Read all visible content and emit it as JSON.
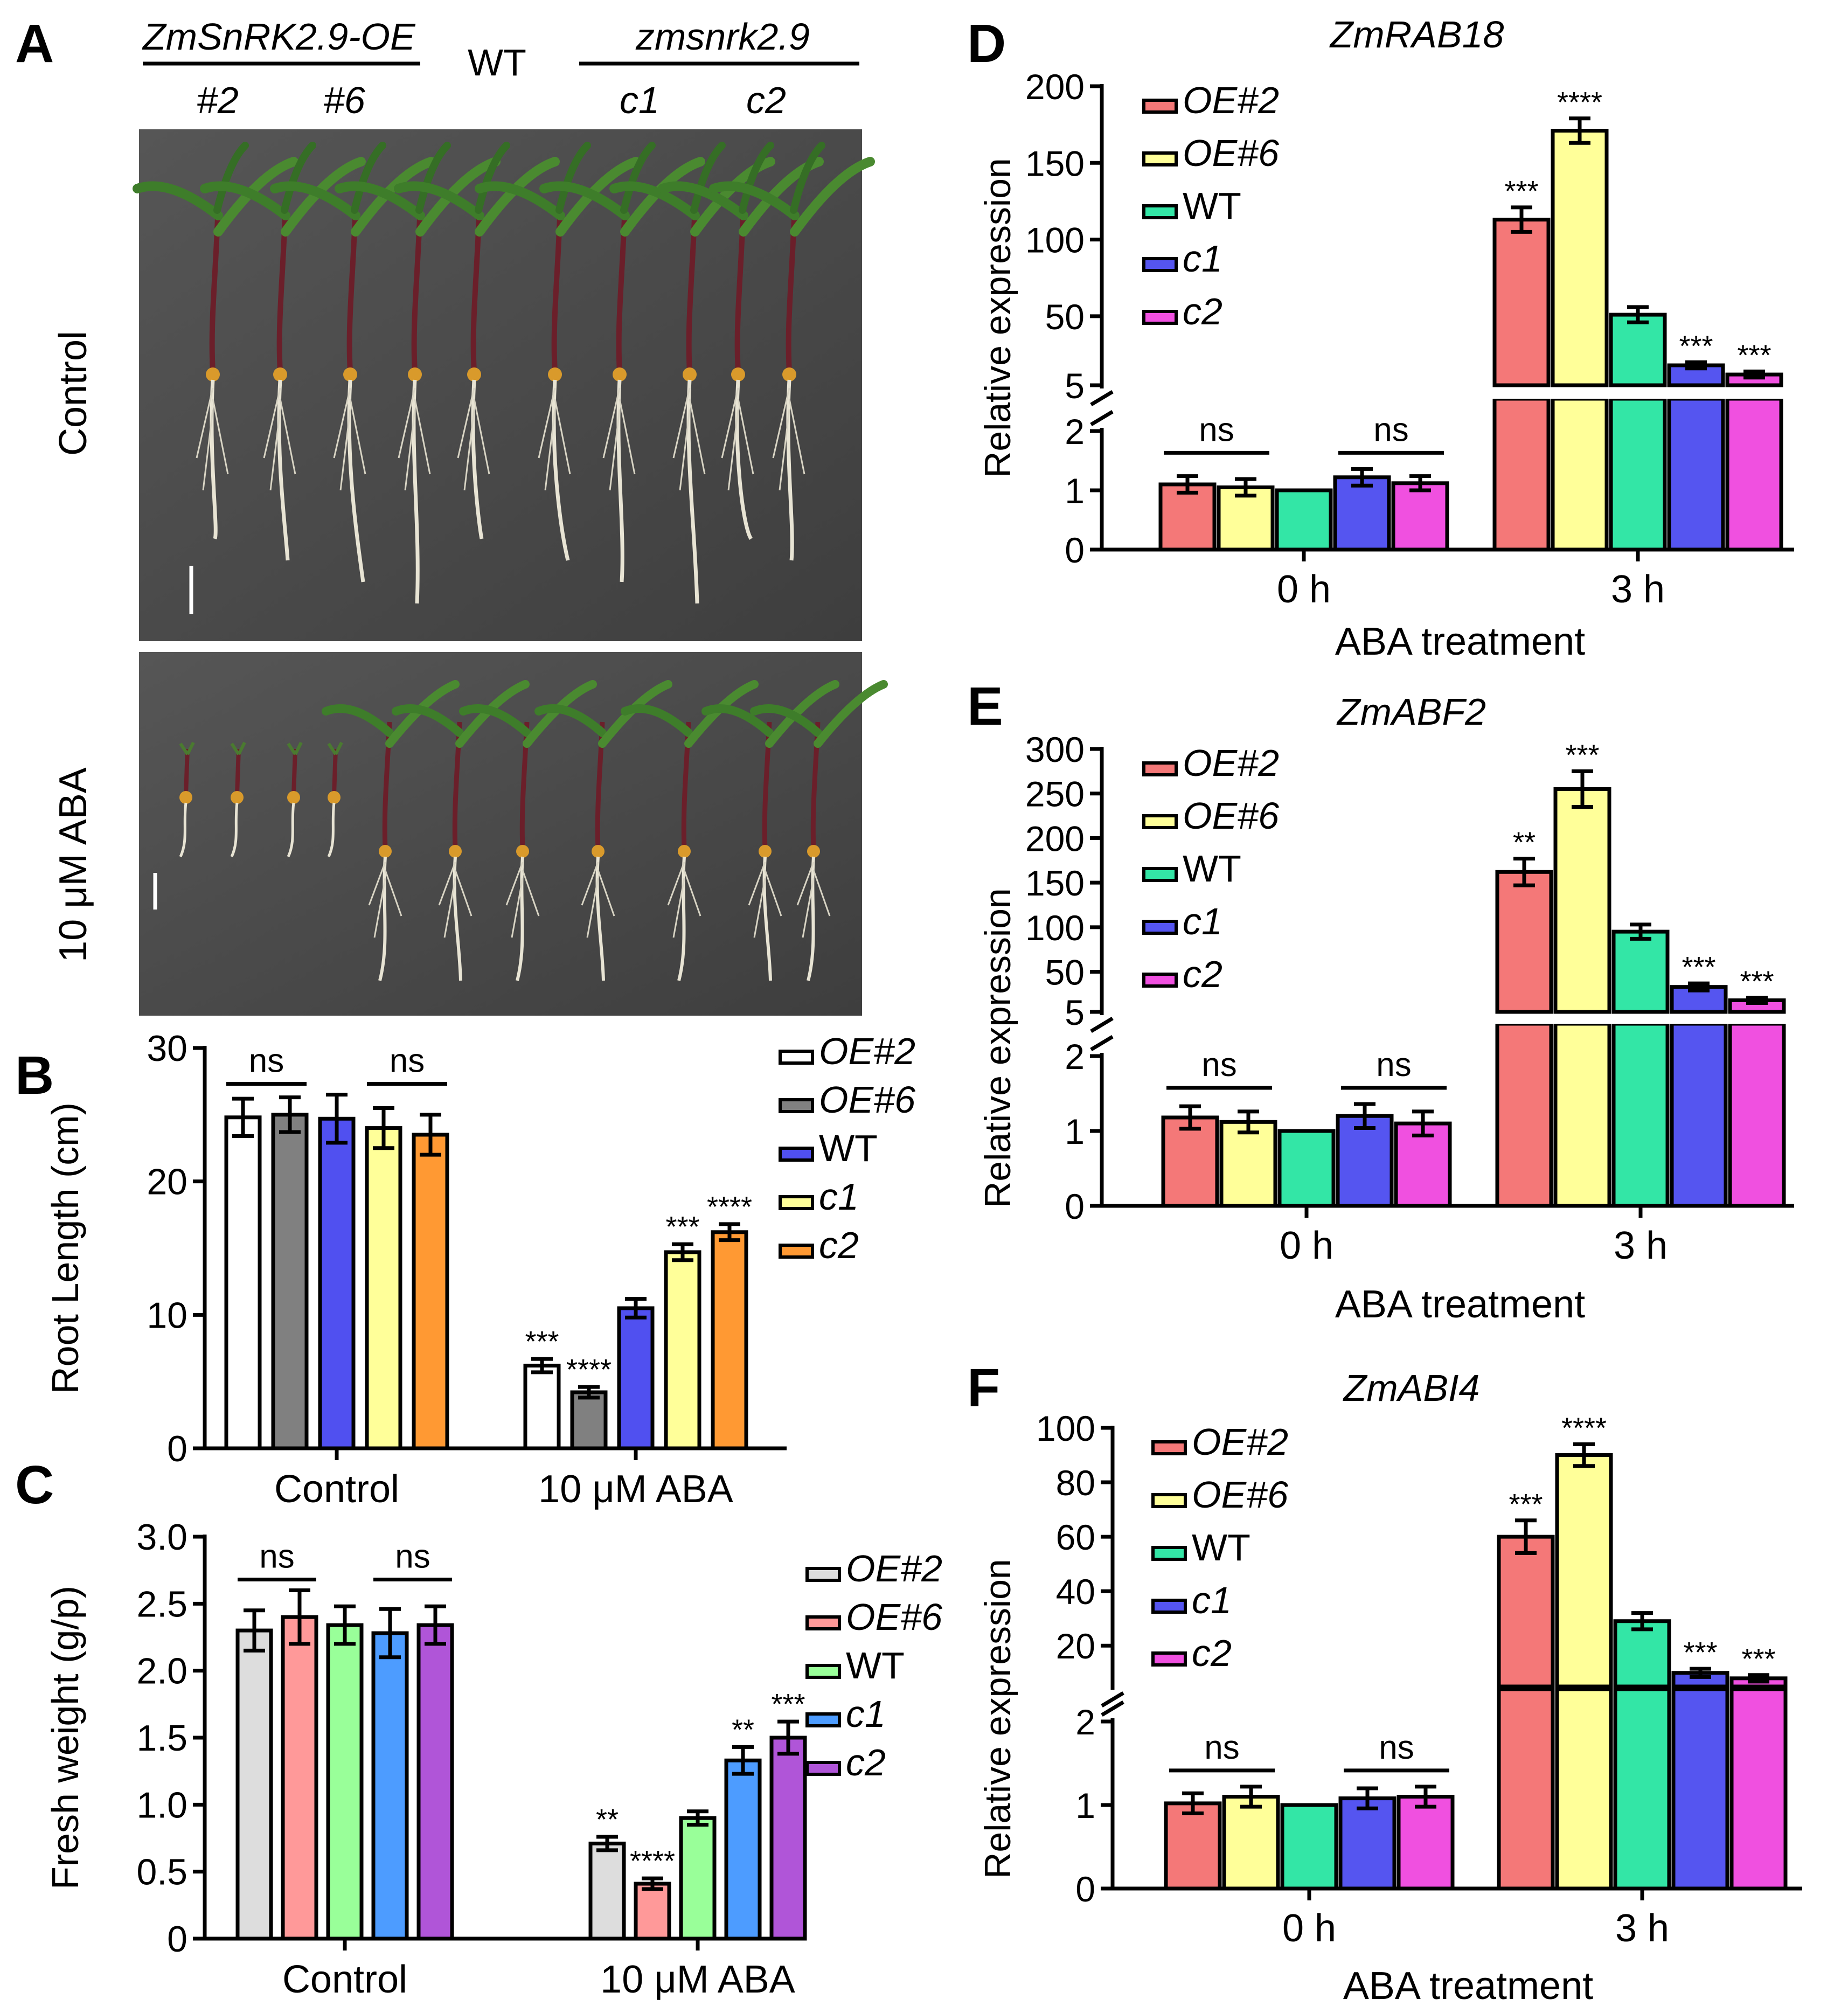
{
  "panelA": {
    "letter": "A",
    "oe_label": "ZmSnRK2.9-OE",
    "wt_label": "WT",
    "mut_label": "zmsnrk2.9",
    "lines": [
      "#2",
      "#6",
      "c1",
      "c2"
    ],
    "row_labels": [
      "Control",
      "10 μM ABA"
    ]
  },
  "chart_data": [
    {
      "id": "B",
      "type": "bar",
      "letter": "B",
      "ylabel": "Root  Length (cm)",
      "ylim": [
        0,
        30
      ],
      "yticks": [
        0,
        10,
        20,
        30
      ],
      "groups": [
        "Control",
        "10 μM ABA"
      ],
      "series": [
        {
          "name": "OE#2",
          "color": "#ffffff",
          "values": [
            24.8,
            6.2
          ],
          "errors": [
            1.4,
            0.5
          ],
          "sig": [
            "",
            "***"
          ]
        },
        {
          "name": "OE#6",
          "color": "#808080",
          "values": [
            25.0,
            4.2
          ],
          "errors": [
            1.3,
            0.4
          ],
          "sig": [
            "",
            "****"
          ]
        },
        {
          "name": "WT",
          "color": "#5050f0",
          "values": [
            24.7,
            10.5
          ],
          "errors": [
            1.8,
            0.7
          ],
          "sig": [
            "",
            ""
          ]
        },
        {
          "name": "c1",
          "color": "#ffff99",
          "values": [
            24.0,
            14.7
          ],
          "errors": [
            1.5,
            0.6
          ],
          "sig": [
            "",
            "***"
          ]
        },
        {
          "name": "c2",
          "color": "#ff9933",
          "values": [
            23.5,
            16.2
          ],
          "errors": [
            1.5,
            0.6
          ],
          "sig": [
            "",
            "****"
          ]
        }
      ],
      "ns": [
        "ns",
        "ns"
      ]
    },
    {
      "id": "C",
      "type": "bar",
      "letter": "C",
      "ylabel": "Fresh  weight  (g/p)",
      "ylim": [
        0,
        3
      ],
      "yticks": [
        "0",
        "0.5",
        "1.0",
        "1.5",
        "2.0",
        "2.5",
        "3.0"
      ],
      "groups": [
        "Control",
        "10 μM ABA"
      ],
      "series": [
        {
          "name": "OE#2",
          "color": "#dddddd",
          "values": [
            2.3,
            0.71
          ],
          "errors": [
            0.15,
            0.05
          ],
          "sig": [
            "",
            "**"
          ]
        },
        {
          "name": "OE#6",
          "color": "#ff9999",
          "values": [
            2.4,
            0.41
          ],
          "errors": [
            0.2,
            0.04
          ],
          "sig": [
            "",
            "****"
          ]
        },
        {
          "name": "WT",
          "color": "#99ff99",
          "values": [
            2.34,
            0.9
          ],
          "errors": [
            0.14,
            0.05
          ],
          "sig": [
            "",
            ""
          ]
        },
        {
          "name": "c1",
          "color": "#4d9cff",
          "values": [
            2.28,
            1.33
          ],
          "errors": [
            0.18,
            0.1
          ],
          "sig": [
            "",
            "**"
          ]
        },
        {
          "name": "c2",
          "color": "#b055d8",
          "values": [
            2.34,
            1.5
          ],
          "errors": [
            0.14,
            0.12
          ],
          "sig": [
            "",
            "***"
          ]
        }
      ],
      "ns": [
        "ns",
        "ns"
      ]
    },
    {
      "id": "D",
      "type": "bar",
      "letter": "D",
      "title": "ZmRAB18",
      "ylabel": "Relative expression",
      "xlabel": "ABA   treatment",
      "groups": [
        "0 h",
        "3 h"
      ],
      "broken_axis": {
        "lower": [
          0,
          2
        ],
        "upper": [
          5,
          200
        ],
        "lower_ticks": [
          "0",
          "1",
          "2"
        ],
        "upper_ticks": [
          "5",
          "50",
          "100",
          "150",
          "200"
        ]
      },
      "series": [
        {
          "name": "OE#2",
          "color": "#f47878",
          "values": [
            1.1,
            113
          ],
          "errors": [
            0.14,
            8
          ],
          "sig": [
            "",
            "***"
          ]
        },
        {
          "name": "OE#6",
          "color": "#ffff99",
          "values": [
            1.05,
            171
          ],
          "errors": [
            0.14,
            8
          ],
          "sig": [
            "",
            "****"
          ]
        },
        {
          "name": "WT",
          "color": "#33e6a6",
          "values": [
            1.0,
            51
          ],
          "errors": [
            0.0,
            5
          ],
          "sig": [
            "",
            ""
          ]
        },
        {
          "name": "c1",
          "color": "#5555f0",
          "values": [
            1.22,
            18
          ],
          "errors": [
            0.14,
            2
          ],
          "sig": [
            "",
            "***"
          ]
        },
        {
          "name": "c2",
          "color": "#f050e0",
          "values": [
            1.12,
            12
          ],
          "errors": [
            0.12,
            2
          ],
          "sig": [
            "",
            "***"
          ]
        }
      ],
      "ns": [
        "ns",
        "ns"
      ]
    },
    {
      "id": "E",
      "type": "bar",
      "letter": "E",
      "title": "ZmABF2",
      "ylabel": "Relative expression",
      "xlabel": "ABA   treatment",
      "groups": [
        "0 h",
        "3 h"
      ],
      "broken_axis": {
        "lower": [
          0,
          2
        ],
        "upper": [
          5,
          300
        ],
        "lower_ticks": [
          "0",
          "1",
          "2"
        ],
        "upper_ticks": [
          "5",
          "50",
          "100",
          "150",
          "200",
          "250",
          "300"
        ]
      },
      "series": [
        {
          "name": "OE#2",
          "color": "#f47878",
          "values": [
            1.18,
            162
          ],
          "errors": [
            0.15,
            15
          ],
          "sig": [
            "",
            "**"
          ]
        },
        {
          "name": "OE#6",
          "color": "#ffff99",
          "values": [
            1.12,
            255
          ],
          "errors": [
            0.14,
            20
          ],
          "sig": [
            "",
            "***"
          ]
        },
        {
          "name": "WT",
          "color": "#33e6a6",
          "values": [
            1.0,
            95
          ],
          "errors": [
            0.0,
            8
          ],
          "sig": [
            "",
            ""
          ]
        },
        {
          "name": "c1",
          "color": "#5555f0",
          "values": [
            1.2,
            33
          ],
          "errors": [
            0.16,
            4
          ],
          "sig": [
            "",
            "***"
          ]
        },
        {
          "name": "c2",
          "color": "#f050e0",
          "values": [
            1.1,
            18
          ],
          "errors": [
            0.16,
            3
          ],
          "sig": [
            "",
            "***"
          ]
        }
      ],
      "ns": [
        "ns",
        "ns"
      ]
    },
    {
      "id": "F",
      "type": "bar",
      "letter": "F",
      "title": "ZmABI4",
      "ylabel": "Relative expression",
      "xlabel": "ABA   treatment",
      "groups": [
        "0 h",
        "3 h"
      ],
      "broken_axis": {
        "lower": [
          0,
          2
        ],
        "upper": [
          5,
          100
        ],
        "lower_ticks": [
          "0",
          "1",
          "2"
        ],
        "upper_ticks": [
          "20",
          "40",
          "60",
          "80",
          "100"
        ]
      },
      "series": [
        {
          "name": "OE#2",
          "color": "#f47878",
          "values": [
            1.02,
            60
          ],
          "errors": [
            0.12,
            6
          ],
          "sig": [
            "",
            "***"
          ]
        },
        {
          "name": "OE#6",
          "color": "#ffff99",
          "values": [
            1.1,
            90
          ],
          "errors": [
            0.12,
            4
          ],
          "sig": [
            "",
            "****"
          ]
        },
        {
          "name": "WT",
          "color": "#33e6a6",
          "values": [
            1.0,
            29
          ],
          "errors": [
            0.0,
            3
          ],
          "sig": [
            "",
            ""
          ]
        },
        {
          "name": "c1",
          "color": "#5555f0",
          "values": [
            1.08,
            10
          ],
          "errors": [
            0.12,
            1.5
          ],
          "sig": [
            "",
            "***"
          ]
        },
        {
          "name": "c2",
          "color": "#f050e0",
          "values": [
            1.1,
            8
          ],
          "errors": [
            0.12,
            1.2
          ],
          "sig": [
            "",
            "***"
          ]
        }
      ],
      "ns": [
        "ns",
        "ns"
      ]
    }
  ]
}
